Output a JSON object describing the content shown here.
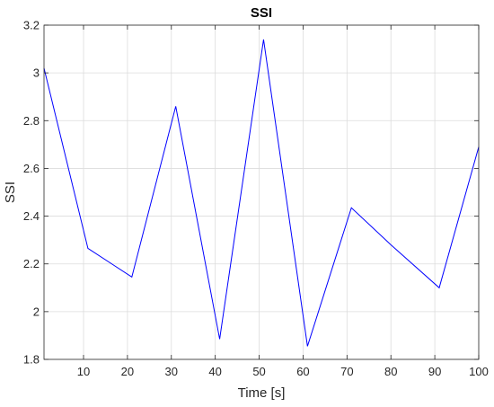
{
  "chart_data": {
    "type": "line",
    "title": "SSI",
    "xlabel": "Time [s]",
    "ylabel": "SSI",
    "xlim": [
      1,
      100
    ],
    "ylim": [
      1.8,
      3.2
    ],
    "xticks": [
      10,
      20,
      30,
      40,
      50,
      60,
      70,
      80,
      90,
      100
    ],
    "yticks": [
      1.8,
      2,
      2.2,
      2.4,
      2.6,
      2.8,
      3,
      3.2
    ],
    "grid": true,
    "series": [
      {
        "color": "#0000ff",
        "x": [
          1,
          11,
          21,
          31,
          41,
          51,
          61,
          71,
          80,
          91,
          100
        ],
        "y": [
          3.02,
          2.265,
          2.145,
          2.86,
          1.885,
          3.14,
          1.855,
          2.435,
          2.28,
          2.1,
          2.69
        ]
      }
    ]
  }
}
